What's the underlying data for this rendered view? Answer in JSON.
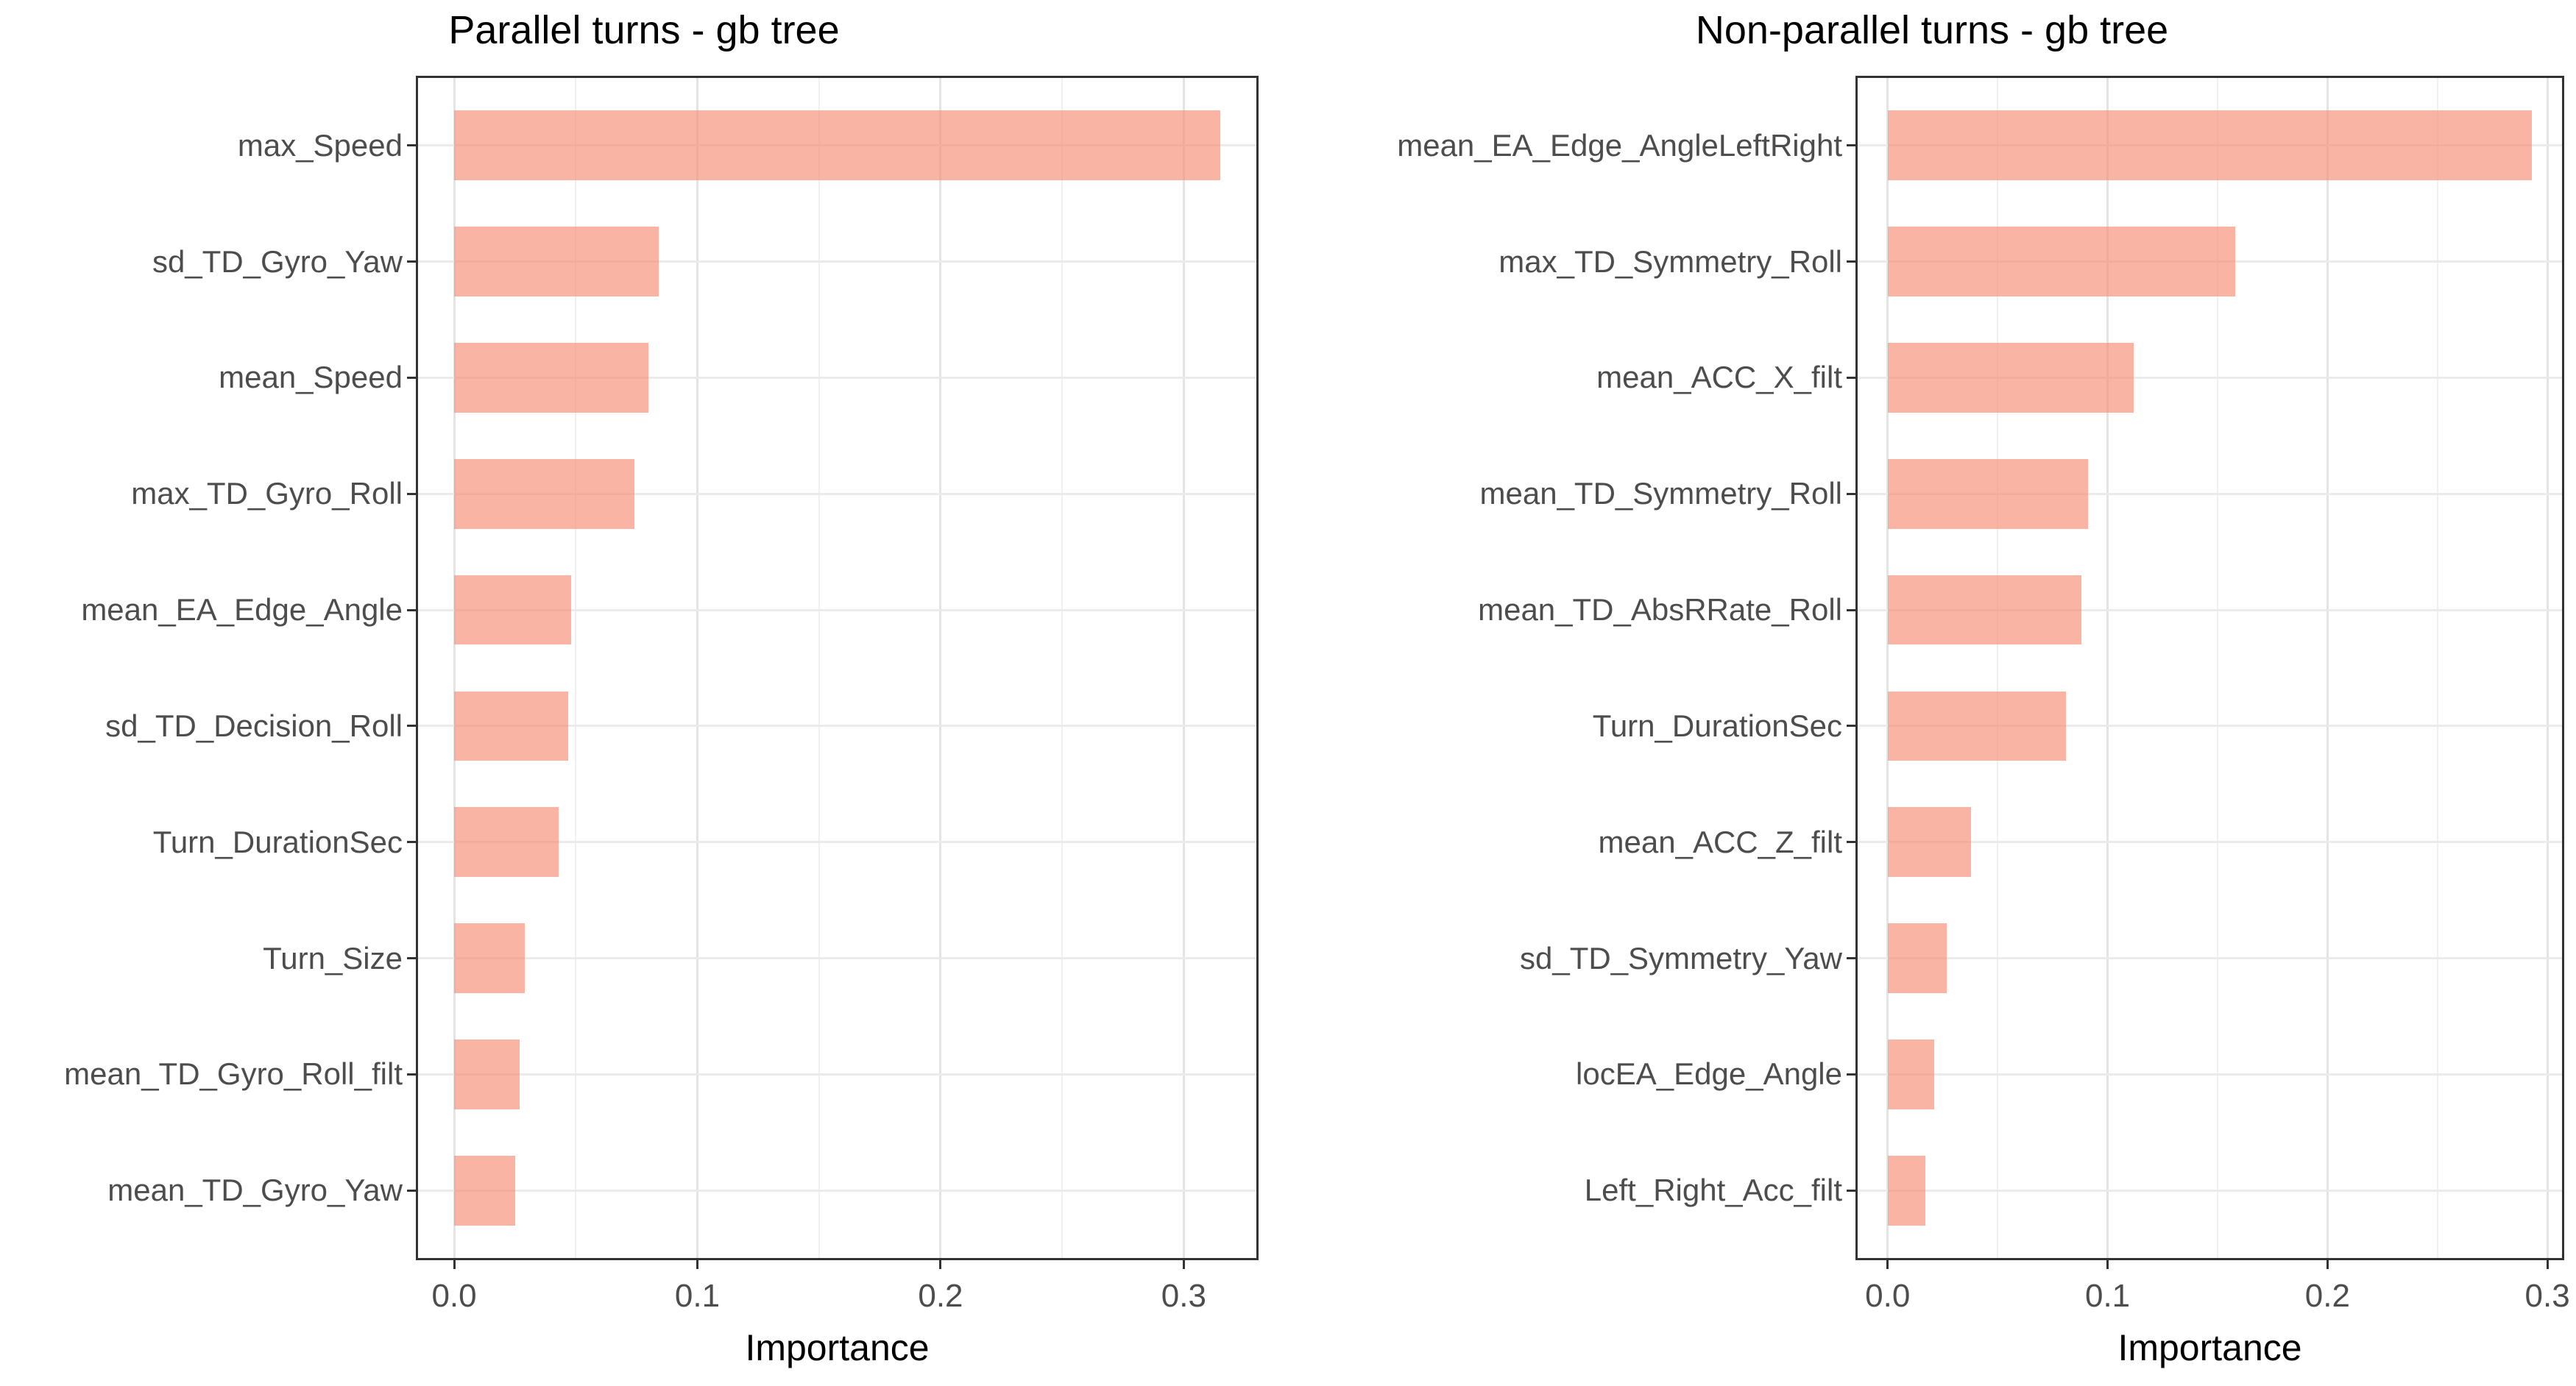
{
  "figure": {
    "background": "#FFFFFF",
    "bar_fill_solid": "#FAB4A3",
    "bar_fill_rgba": "rgba(247,140,114,0.65)",
    "panel_border_color": "#333333",
    "axis_text_color": "#4D4D4D",
    "title_color": "#000000"
  },
  "chart_data": [
    {
      "type": "bar",
      "orientation": "horizontal",
      "title": "Parallel turns - gb tree",
      "xlabel": "Importance",
      "grid": true,
      "legend": "none",
      "xlim": [
        0,
        0.33
      ],
      "xticks": [
        0,
        0.1,
        0.2,
        0.3
      ],
      "xtick_labels": [
        "0.0",
        "0.1",
        "0.2",
        "0.3"
      ],
      "minor_xticks": [
        0.05,
        0.15,
        0.25
      ],
      "categories": [
        "max_Speed",
        "sd_TD_Gyro_Yaw",
        "mean_Speed",
        "max_TD_Gyro_Roll",
        "mean_EA_Edge_Angle",
        "sd_TD_Decision_Roll",
        "Turn_DurationSec",
        "Turn_Size",
        "mean_TD_Gyro_Roll_filt",
        "mean_TD_Gyro_Yaw"
      ],
      "values": [
        0.315,
        0.084,
        0.08,
        0.074,
        0.048,
        0.047,
        0.043,
        0.029,
        0.027,
        0.025
      ]
    },
    {
      "type": "bar",
      "orientation": "horizontal",
      "title": "Non-parallel turns - gb tree",
      "xlabel": "Importance",
      "grid": true,
      "legend": "none",
      "xlim": [
        0,
        0.31
      ],
      "xticks": [
        0,
        0.1,
        0.2,
        0.3
      ],
      "xtick_labels": [
        "0.0",
        "0.1",
        "0.2",
        "0.3"
      ],
      "minor_xticks": [
        0.05,
        0.15,
        0.25
      ],
      "categories": [
        "mean_EA_Edge_AngleLeftRight",
        "max_TD_Symmetry_Roll",
        "mean_ACC_X_filt",
        "mean_TD_Symmetry_Roll",
        "mean_TD_AbsRRate_Roll",
        "Turn_DurationSec",
        "mean_ACC_Z_filt",
        "sd_TD_Symmetry_Yaw",
        "locEA_Edge_Angle",
        "Left_Right_Acc_filt"
      ],
      "values": [
        0.293,
        0.158,
        0.112,
        0.091,
        0.088,
        0.081,
        0.038,
        0.027,
        0.021,
        0.017
      ]
    }
  ]
}
